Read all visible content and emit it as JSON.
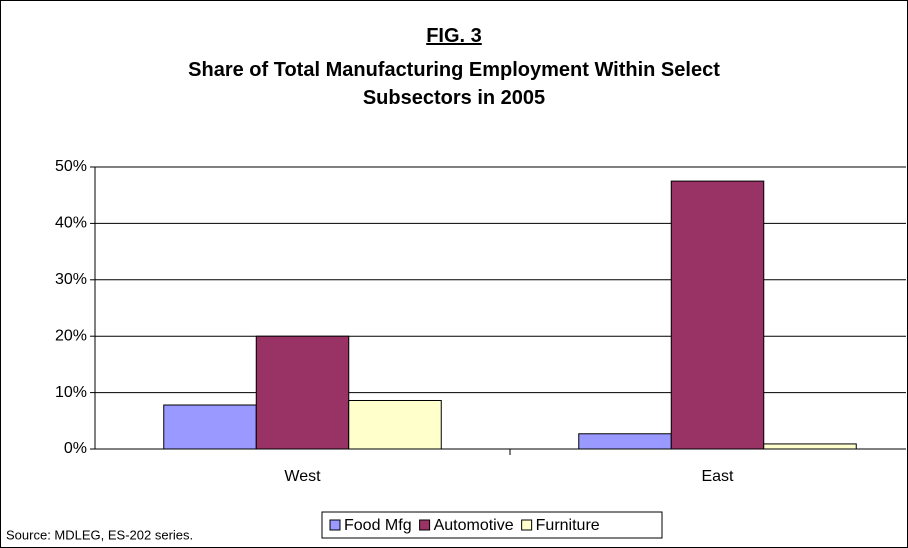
{
  "chart_data": {
    "type": "bar",
    "title": "FIG. 3",
    "subtitle": "Share of Total Manufacturing Employment Within Select Subsectors in 2005",
    "source": "Source: MDLEG, ES-202 series.",
    "categories": [
      "West",
      "East"
    ],
    "series": [
      {
        "name": "Food Mfg",
        "color": "#9999ff",
        "values": [
          7.8,
          2.7
        ]
      },
      {
        "name": "Automotive",
        "color": "#993366",
        "values": [
          20.0,
          47.5
        ]
      },
      {
        "name": "Furniture",
        "color": "#ffffcc",
        "values": [
          8.6,
          0.9
        ]
      }
    ],
    "ylim": [
      0,
      50
    ],
    "yticks": [
      {
        "value": 0,
        "label": "0%"
      },
      {
        "value": 10,
        "label": "10%"
      },
      {
        "value": 20,
        "label": "20%"
      },
      {
        "value": 30,
        "label": "30%"
      },
      {
        "value": 40,
        "label": "40%"
      },
      {
        "value": 50,
        "label": "50%"
      }
    ],
    "grid": true,
    "legend": "bottom"
  }
}
